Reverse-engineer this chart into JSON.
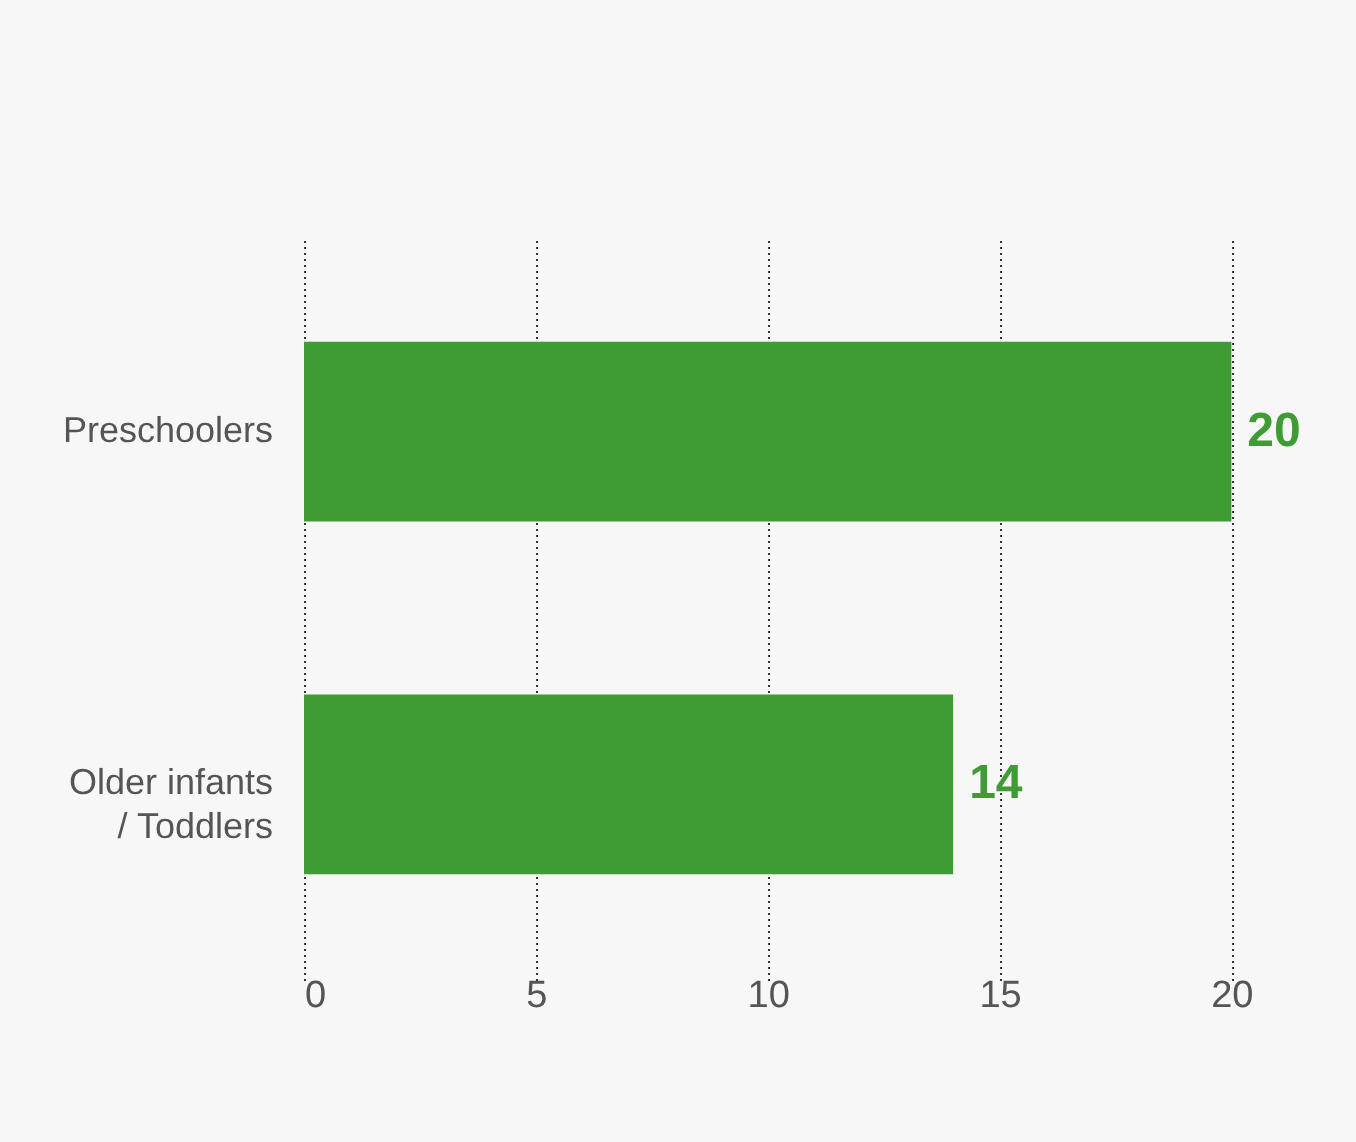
{
  "chart_data": {
    "type": "bar",
    "orientation": "horizontal",
    "categories": [
      "Preschoolers",
      "Older infants / Toddlers"
    ],
    "values": [
      20,
      14
    ],
    "color": "#3f9c35",
    "xlim": [
      0,
      20.1
    ],
    "xticks": [
      0,
      5,
      10,
      15,
      20
    ],
    "grid": "x",
    "data_labels": true
  }
}
